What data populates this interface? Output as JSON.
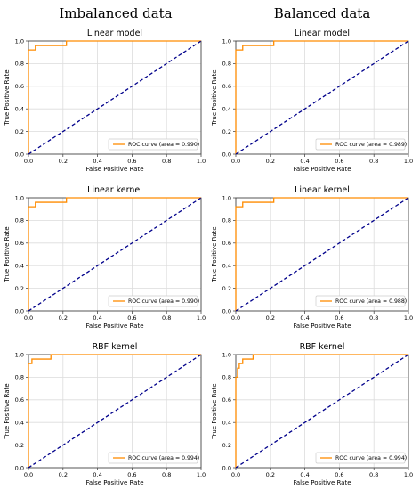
{
  "column_titles": [
    "Imbalanced data",
    "Balanced data"
  ],
  "chart_data": [
    {
      "type": "line",
      "column": 0,
      "row": 0,
      "title": "Linear model",
      "xlabel": "False Positive Rate",
      "ylabel": "True Positive Rate",
      "xlim": [
        0,
        1
      ],
      "ylim": [
        0,
        1
      ],
      "grid": true,
      "legend_position": "lower-right",
      "x_ticks": [
        "0.0",
        "0.2",
        "0.4",
        "0.6",
        "0.8",
        "1.0"
      ],
      "y_ticks": [
        "0.0",
        "0.2",
        "0.4",
        "0.6",
        "0.8",
        "1.0"
      ],
      "series": [
        {
          "name": "ROC curve (area = 0.990)",
          "color": "#ff8c00",
          "x": [
            0,
            0,
            0.04,
            0.04,
            0.22,
            0.22,
            1.0
          ],
          "y": [
            0,
            0.92,
            0.92,
            0.96,
            0.96,
            1.0,
            1.0
          ]
        },
        {
          "color": "#00008b",
          "style": "dashed",
          "x": [
            0,
            1
          ],
          "y": [
            0,
            1
          ]
        }
      ]
    },
    {
      "type": "line",
      "column": 1,
      "row": 0,
      "title": "Linear model",
      "xlabel": "False Positive Rate",
      "ylabel": "True Positive Rate",
      "xlim": [
        0,
        1
      ],
      "ylim": [
        0,
        1
      ],
      "grid": true,
      "legend_position": "lower-right",
      "x_ticks": [
        "0.0",
        "0.2",
        "0.4",
        "0.6",
        "0.8",
        "1.0"
      ],
      "y_ticks": [
        "0.0",
        "0.2",
        "0.4",
        "0.6",
        "0.8",
        "1.0"
      ],
      "series": [
        {
          "name": "ROC curve (area = 0.989)",
          "color": "#ff8c00",
          "x": [
            0,
            0,
            0.04,
            0.04,
            0.22,
            0.22,
            1.0
          ],
          "y": [
            0,
            0.92,
            0.92,
            0.96,
            0.96,
            1.0,
            1.0
          ]
        },
        {
          "color": "#00008b",
          "style": "dashed",
          "x": [
            0,
            1
          ],
          "y": [
            0,
            1
          ]
        }
      ]
    },
    {
      "type": "line",
      "column": 0,
      "row": 1,
      "title": "Linear kernel",
      "xlabel": "False Positive Rate",
      "ylabel": "True Positive Rate",
      "xlim": [
        0,
        1
      ],
      "ylim": [
        0,
        1
      ],
      "grid": true,
      "legend_position": "lower-right",
      "x_ticks": [
        "0.0",
        "0.2",
        "0.4",
        "0.6",
        "0.8",
        "1.0"
      ],
      "y_ticks": [
        "0.0",
        "0.2",
        "0.4",
        "0.6",
        "0.8",
        "1.0"
      ],
      "series": [
        {
          "name": "ROC curve (area = 0.990)",
          "color": "#ff8c00",
          "x": [
            0,
            0,
            0.04,
            0.04,
            0.22,
            0.22,
            1.0
          ],
          "y": [
            0,
            0.92,
            0.92,
            0.96,
            0.96,
            1.0,
            1.0
          ]
        },
        {
          "color": "#00008b",
          "style": "dashed",
          "x": [
            0,
            1
          ],
          "y": [
            0,
            1
          ]
        }
      ]
    },
    {
      "type": "line",
      "column": 1,
      "row": 1,
      "title": "Linear kernel",
      "xlabel": "False Positive Rate",
      "ylabel": "True Positive Rate",
      "xlim": [
        0,
        1
      ],
      "ylim": [
        0,
        1
      ],
      "grid": true,
      "legend_position": "lower-right",
      "x_ticks": [
        "0.0",
        "0.2",
        "0.4",
        "0.6",
        "0.8",
        "1.0"
      ],
      "y_ticks": [
        "0.0",
        "0.2",
        "0.4",
        "0.6",
        "0.8",
        "1.0"
      ],
      "series": [
        {
          "name": "ROC curve (area = 0.988)",
          "color": "#ff8c00",
          "x": [
            0,
            0,
            0.04,
            0.04,
            0.22,
            0.22,
            1.0
          ],
          "y": [
            0,
            0.92,
            0.92,
            0.96,
            0.96,
            1.0,
            1.0
          ]
        },
        {
          "color": "#00008b",
          "style": "dashed",
          "x": [
            0,
            1
          ],
          "y": [
            0,
            1
          ]
        }
      ]
    },
    {
      "type": "line",
      "column": 0,
      "row": 2,
      "title": "RBF kernel",
      "xlabel": "False Positive Rate",
      "ylabel": "True Positive Rate",
      "xlim": [
        0,
        1
      ],
      "ylim": [
        0,
        1
      ],
      "grid": true,
      "legend_position": "lower-right",
      "x_ticks": [
        "0.0",
        "0.2",
        "0.4",
        "0.6",
        "0.8",
        "1.0"
      ],
      "y_ticks": [
        "0.0",
        "0.2",
        "0.4",
        "0.6",
        "0.8",
        "1.0"
      ],
      "series": [
        {
          "name": "ROC curve (area = 0.994)",
          "color": "#ff8c00",
          "x": [
            0,
            0,
            0.02,
            0.02,
            0.13,
            0.13,
            1.0
          ],
          "y": [
            0,
            0.92,
            0.92,
            0.96,
            0.96,
            1.0,
            1.0
          ]
        },
        {
          "color": "#00008b",
          "style": "dashed",
          "x": [
            0,
            1
          ],
          "y": [
            0,
            1
          ]
        }
      ]
    },
    {
      "type": "line",
      "column": 1,
      "row": 2,
      "title": "RBF kernel",
      "xlabel": "False Positive Rate",
      "ylabel": "True Positive Rate",
      "xlim": [
        0,
        1
      ],
      "ylim": [
        0,
        1
      ],
      "grid": true,
      "legend_position": "lower-right",
      "x_ticks": [
        "0.0",
        "0.2",
        "0.4",
        "0.6",
        "0.8",
        "1.0"
      ],
      "y_ticks": [
        "0.0",
        "0.2",
        "0.4",
        "0.6",
        "0.8",
        "1.0"
      ],
      "series": [
        {
          "name": "ROC curve (area = 0.994)",
          "color": "#ff8c00",
          "x": [
            0,
            0,
            0.01,
            0.01,
            0.02,
            0.02,
            0.04,
            0.04,
            0.1,
            0.1,
            1.0
          ],
          "y": [
            0,
            0.8,
            0.8,
            0.88,
            0.88,
            0.92,
            0.92,
            0.96,
            0.96,
            1.0,
            1.0
          ]
        },
        {
          "color": "#00008b",
          "style": "dashed",
          "x": [
            0,
            1
          ],
          "y": [
            0,
            1
          ]
        }
      ]
    }
  ]
}
